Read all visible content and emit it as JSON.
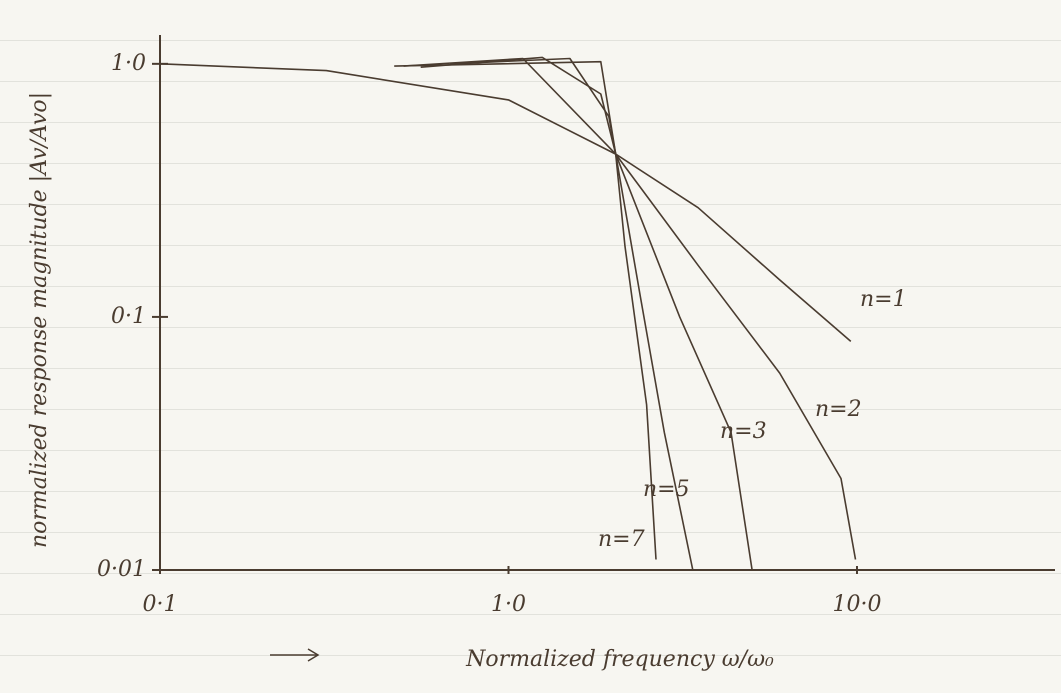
{
  "chart_data": {
    "type": "line",
    "x_label": "Normalized frequency ω/ω₀",
    "y_label": "normalized response magnitude |Av/Avo|",
    "xscale": "log",
    "yscale": "log",
    "xlim": [
      0.1,
      37
    ],
    "ylim": [
      0.01,
      1.3
    ],
    "xticks": [
      {
        "value": 0.1,
        "label": "0·1"
      },
      {
        "value": 1,
        "label": "1·0"
      },
      {
        "value": 10,
        "label": "10·0"
      }
    ],
    "yticks": [
      {
        "value": 1,
        "label": "1·0"
      },
      {
        "value": 0.1,
        "label": "0·1"
      },
      {
        "value": 0.01,
        "label": "0·01"
      }
    ],
    "color": "#4a3c30",
    "series": [
      {
        "name": "n=1",
        "x": [
          0.1,
          0.3,
          1,
          2.03,
          3.5,
          6,
          9.6
        ],
        "values": [
          1.0,
          0.94,
          0.72,
          0.44,
          0.27,
          0.14,
          0.08
        ]
      },
      {
        "name": "n=2",
        "x": [
          0.5,
          1.1,
          2.03,
          3.5,
          6,
          9,
          9.9
        ],
        "values": [
          0.98,
          1.05,
          0.44,
          0.16,
          0.06,
          0.023,
          0.011
        ]
      },
      {
        "name": "n=3",
        "x": [
          0.56,
          1.25,
          1.84,
          2.03,
          3.1,
          4.35,
          5.0
        ],
        "values": [
          0.97,
          1.06,
          0.76,
          0.44,
          0.1,
          0.035,
          0.01
        ]
      },
      {
        "name": "n=5",
        "x": [
          0.68,
          1.5,
          1.94,
          2.03,
          2.39,
          2.8,
          3.38
        ],
        "values": [
          1.0,
          1.05,
          0.62,
          0.44,
          0.12,
          0.035,
          0.01
        ]
      },
      {
        "name": "n=7",
        "x": [
          0.47,
          1.84,
          2.03,
          2.16,
          2.49,
          2.65
        ],
        "values": [
          0.98,
          1.02,
          0.44,
          0.19,
          0.045,
          0.011
        ]
      }
    ]
  }
}
